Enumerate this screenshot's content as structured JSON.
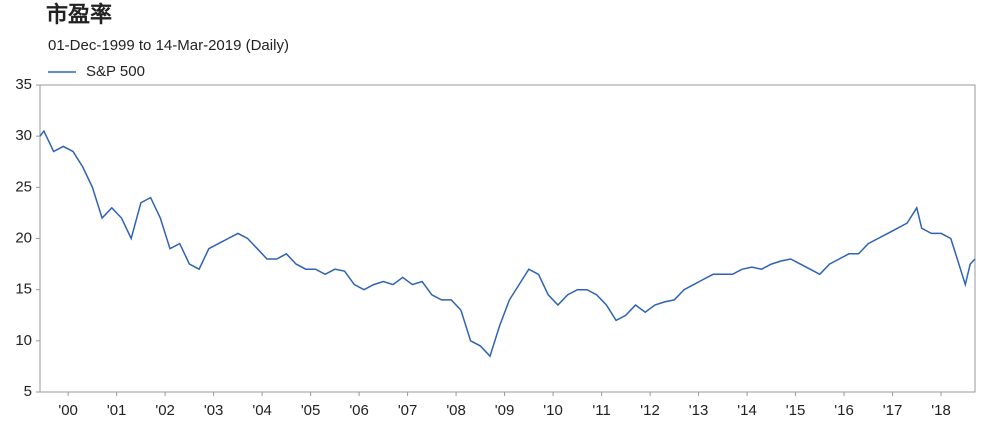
{
  "chart_data": {
    "type": "line",
    "title": "市盈率",
    "subtitle": "01-Dec-1999 to 14-Mar-2019 (Daily)",
    "xlim": [
      1999.92,
      2019.2
    ],
    "ylim": [
      5,
      35
    ],
    "yticks": [
      5,
      10,
      15,
      20,
      25,
      30,
      35
    ],
    "xticks": [
      {
        "value": 2000.5,
        "label": "'00"
      },
      {
        "value": 2001.5,
        "label": "'01"
      },
      {
        "value": 2002.5,
        "label": "'02"
      },
      {
        "value": 2003.5,
        "label": "'03"
      },
      {
        "value": 2004.5,
        "label": "'04"
      },
      {
        "value": 2005.5,
        "label": "'05"
      },
      {
        "value": 2006.5,
        "label": "'06"
      },
      {
        "value": 2007.5,
        "label": "'07"
      },
      {
        "value": 2008.5,
        "label": "'08"
      },
      {
        "value": 2009.5,
        "label": "'09"
      },
      {
        "value": 2010.5,
        "label": "'10"
      },
      {
        "value": 2011.5,
        "label": "'11"
      },
      {
        "value": 2012.5,
        "label": "'12"
      },
      {
        "value": 2013.5,
        "label": "'13"
      },
      {
        "value": 2014.5,
        "label": "'14"
      },
      {
        "value": 2015.5,
        "label": "'15"
      },
      {
        "value": 2016.5,
        "label": "'16"
      },
      {
        "value": 2017.5,
        "label": "'17"
      },
      {
        "value": 2018.5,
        "label": "'18"
      }
    ],
    "x": [
      1999.92,
      2000.0,
      2000.2,
      2000.4,
      2000.6,
      2000.8,
      2001.0,
      2001.2,
      2001.4,
      2001.6,
      2001.8,
      2002.0,
      2002.2,
      2002.4,
      2002.6,
      2002.8,
      2003.0,
      2003.2,
      2003.4,
      2003.6,
      2003.8,
      2004.0,
      2004.2,
      2004.4,
      2004.6,
      2004.8,
      2005.0,
      2005.2,
      2005.4,
      2005.6,
      2005.8,
      2006.0,
      2006.2,
      2006.4,
      2006.6,
      2006.8,
      2007.0,
      2007.2,
      2007.4,
      2007.6,
      2007.8,
      2008.0,
      2008.2,
      2008.4,
      2008.6,
      2008.8,
      2009.0,
      2009.2,
      2009.4,
      2009.6,
      2009.8,
      2010.0,
      2010.2,
      2010.4,
      2010.6,
      2010.8,
      2011.0,
      2011.2,
      2011.4,
      2011.6,
      2011.8,
      2012.0,
      2012.2,
      2012.4,
      2012.6,
      2012.8,
      2013.0,
      2013.2,
      2013.4,
      2013.6,
      2013.8,
      2014.0,
      2014.2,
      2014.4,
      2014.6,
      2014.8,
      2015.0,
      2015.2,
      2015.4,
      2015.6,
      2015.8,
      2016.0,
      2016.2,
      2016.4,
      2016.6,
      2016.8,
      2017.0,
      2017.2,
      2017.4,
      2017.6,
      2017.8,
      2018.0,
      2018.1,
      2018.3,
      2018.5,
      2018.7,
      2018.9,
      2019.0,
      2019.1,
      2019.2
    ],
    "series": [
      {
        "name": "S&P 500",
        "color": "#2e62b5",
        "values": [
          30,
          30.5,
          28.5,
          29,
          28.5,
          27,
          25,
          22,
          23,
          22,
          20,
          23.5,
          24,
          22,
          19,
          19.5,
          17.5,
          17,
          19,
          19.5,
          20,
          20.5,
          20,
          19,
          18,
          18,
          18.5,
          17.5,
          17,
          17,
          16.5,
          17,
          16.8,
          15.5,
          15,
          15.5,
          15.8,
          15.5,
          16.2,
          15.5,
          15.8,
          14.5,
          14,
          14,
          13,
          10,
          9.5,
          8.5,
          11.5,
          14,
          15.5,
          17,
          16.5,
          14.5,
          13.5,
          14.5,
          15,
          15,
          14.5,
          13.5,
          12,
          12.5,
          13.5,
          12.8,
          13.5,
          13.8,
          14,
          15,
          15.5,
          16,
          16.5,
          16.5,
          16.5,
          17,
          17.2,
          17,
          17.5,
          17.8,
          18,
          17.5,
          17,
          16.5,
          17.5,
          18,
          18.5,
          18.5,
          19.5,
          20,
          20.5,
          21,
          21.5,
          23,
          21,
          20.5,
          20.5,
          20,
          17,
          15.5,
          17.5,
          18
        ]
      }
    ]
  }
}
